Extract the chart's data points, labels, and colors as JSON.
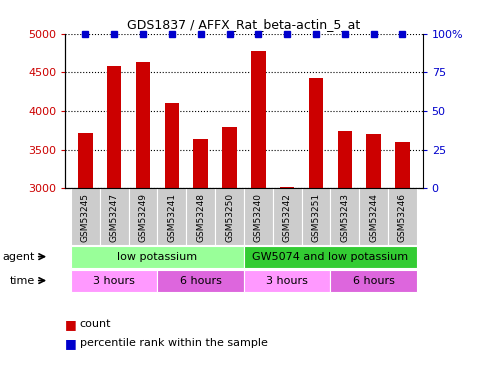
{
  "title": "GDS1837 / AFFX_Rat_beta-actin_5_at",
  "samples": [
    "GSM53245",
    "GSM53247",
    "GSM53249",
    "GSM53241",
    "GSM53248",
    "GSM53250",
    "GSM53240",
    "GSM53242",
    "GSM53251",
    "GSM53243",
    "GSM53244",
    "GSM53246"
  ],
  "counts": [
    3720,
    4580,
    4640,
    4100,
    3640,
    3800,
    4780,
    3020,
    4430,
    3740,
    3700,
    3600
  ],
  "percentile_ranks": [
    100,
    100,
    100,
    100,
    100,
    100,
    100,
    100,
    100,
    100,
    100,
    100
  ],
  "bar_color": "#cc0000",
  "dot_color": "#0000cc",
  "ylim_left": [
    3000,
    5000
  ],
  "ylim_right": [
    0,
    100
  ],
  "yticks_left": [
    3000,
    3500,
    4000,
    4500,
    5000
  ],
  "yticks_right": [
    0,
    25,
    50,
    75,
    100
  ],
  "ytick_labels_right": [
    "0",
    "25",
    "50",
    "75",
    "100%"
  ],
  "agent_groups": [
    {
      "label": "low potassium",
      "start": 0,
      "end": 6,
      "color": "#99ff99"
    },
    {
      "label": "GW5074 and low potassium",
      "start": 6,
      "end": 12,
      "color": "#33cc33"
    }
  ],
  "time_groups": [
    {
      "label": "3 hours",
      "start": 0,
      "end": 3,
      "color": "#ff99ff"
    },
    {
      "label": "6 hours",
      "start": 3,
      "end": 6,
      "color": "#dd66dd"
    },
    {
      "label": "3 hours",
      "start": 6,
      "end": 9,
      "color": "#ff99ff"
    },
    {
      "label": "6 hours",
      "start": 9,
      "end": 12,
      "color": "#dd66dd"
    }
  ],
  "legend_items": [
    {
      "label": "count",
      "color": "#cc0000"
    },
    {
      "label": "percentile rank within the sample",
      "color": "#0000cc"
    }
  ],
  "xlabel_agent": "agent",
  "xlabel_time": "time",
  "bar_width": 0.5,
  "tick_color_left": "#cc0000",
  "tick_color_right": "#0000cc",
  "background_color": "#ffffff",
  "grid_color": "#000000",
  "sample_bg_color": "#cccccc",
  "n_samples": 12
}
